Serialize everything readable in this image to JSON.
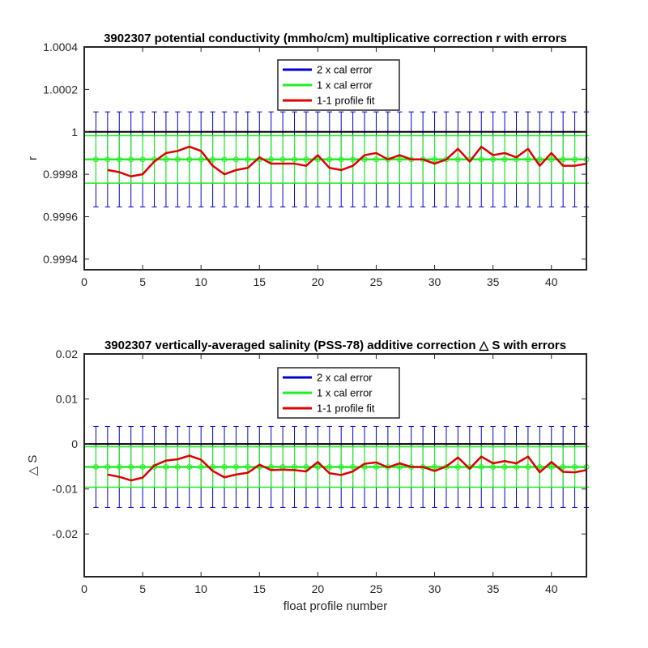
{
  "chart_data": [
    {
      "type": "line",
      "title": "3902307 potential conductivity (mmho/cm) multiplicative correction r with errors",
      "xlabel": "",
      "ylabel": "r",
      "xlim": [
        0,
        43
      ],
      "ylim": [
        0.99935,
        1.0004
      ],
      "xticks": [
        0,
        5,
        10,
        15,
        20,
        25,
        30,
        35,
        40
      ],
      "yticks": [
        0.9994,
        0.9996,
        0.9998,
        1,
        1.0002,
        1.0004
      ],
      "ytick_labels": [
        "0.9994",
        "0.9996",
        "0.9998",
        "1",
        "1.0002",
        "1.0004"
      ],
      "reference_line": 1,
      "legend": {
        "placement": "top-center",
        "entries": [
          {
            "label": "2 x cal error",
            "color": "#0000cc"
          },
          {
            "label": "1 x cal error",
            "color": "#22ee22"
          },
          {
            "label": "1-1 profile fit",
            "color": "#dd0000"
          }
        ]
      },
      "fit": {
        "value": 0.99987,
        "err1": 0.000112,
        "err2": 0.000224
      },
      "profile_fit": {
        "x": [
          2,
          3,
          4,
          5,
          6,
          7,
          8,
          9,
          10,
          11,
          12,
          13,
          14,
          15,
          16,
          17,
          18,
          19,
          20,
          21,
          22,
          23,
          24,
          25,
          26,
          27,
          28,
          29,
          30,
          31,
          32,
          33,
          34,
          35,
          36,
          37,
          38,
          39,
          40,
          41,
          42,
          43
        ],
        "y": [
          0.99982,
          0.99981,
          0.99979,
          0.9998,
          0.99986,
          0.9999,
          0.99991,
          0.99993,
          0.99991,
          0.99984,
          0.9998,
          0.99982,
          0.99983,
          0.99988,
          0.99985,
          0.99985,
          0.99985,
          0.99984,
          0.99989,
          0.99983,
          0.99982,
          0.99984,
          0.99989,
          0.9999,
          0.99987,
          0.99989,
          0.99987,
          0.99987,
          0.99985,
          0.99987,
          0.99992,
          0.99986,
          0.99993,
          0.99989,
          0.9999,
          0.99988,
          0.99992,
          0.99984,
          0.9999,
          0.99984,
          0.99984,
          0.99985
        ]
      }
    },
    {
      "type": "line",
      "title": "3902307 vertically-averaged salinity (PSS-78) additive correction △ S with errors",
      "xlabel": "float profile number",
      "ylabel": "△ S",
      "xlim": [
        0,
        43
      ],
      "ylim": [
        -0.0295,
        0.02
      ],
      "xticks": [
        0,
        5,
        10,
        15,
        20,
        25,
        30,
        35,
        40
      ],
      "yticks": [
        -0.02,
        -0.01,
        0,
        0.01,
        0.02
      ],
      "ytick_labels": [
        "-0.02",
        "-0.01",
        "0",
        "0.01",
        "0.02"
      ],
      "reference_line": 0,
      "legend": {
        "placement": "top-center",
        "entries": [
          {
            "label": "2 x cal error",
            "color": "#0000cc"
          },
          {
            "label": "1 x cal error",
            "color": "#22ee22"
          },
          {
            "label": "1-1 profile fit",
            "color": "#dd0000"
          }
        ]
      },
      "fit": {
        "value": -0.0051,
        "err1": 0.0045,
        "err2": 0.009
      },
      "profile_fit": {
        "x": [
          2,
          3,
          4,
          5,
          6,
          7,
          8,
          9,
          10,
          11,
          12,
          13,
          14,
          15,
          16,
          17,
          18,
          19,
          20,
          21,
          22,
          23,
          24,
          25,
          26,
          27,
          28,
          29,
          30,
          31,
          32,
          33,
          34,
          35,
          36,
          37,
          38,
          39,
          40,
          41,
          42,
          43
        ],
        "y": [
          -0.0068,
          -0.0073,
          -0.0081,
          -0.0075,
          -0.0048,
          -0.0037,
          -0.0034,
          -0.0026,
          -0.0035,
          -0.006,
          -0.0074,
          -0.0068,
          -0.0064,
          -0.0046,
          -0.0058,
          -0.0057,
          -0.0058,
          -0.0061,
          -0.004,
          -0.0065,
          -0.0069,
          -0.0061,
          -0.0044,
          -0.0041,
          -0.0052,
          -0.0043,
          -0.0051,
          -0.0051,
          -0.006,
          -0.005,
          -0.003,
          -0.0055,
          -0.0028,
          -0.0043,
          -0.0038,
          -0.0043,
          -0.0028,
          -0.0063,
          -0.004,
          -0.0062,
          -0.0063,
          -0.0058
        ]
      }
    }
  ]
}
